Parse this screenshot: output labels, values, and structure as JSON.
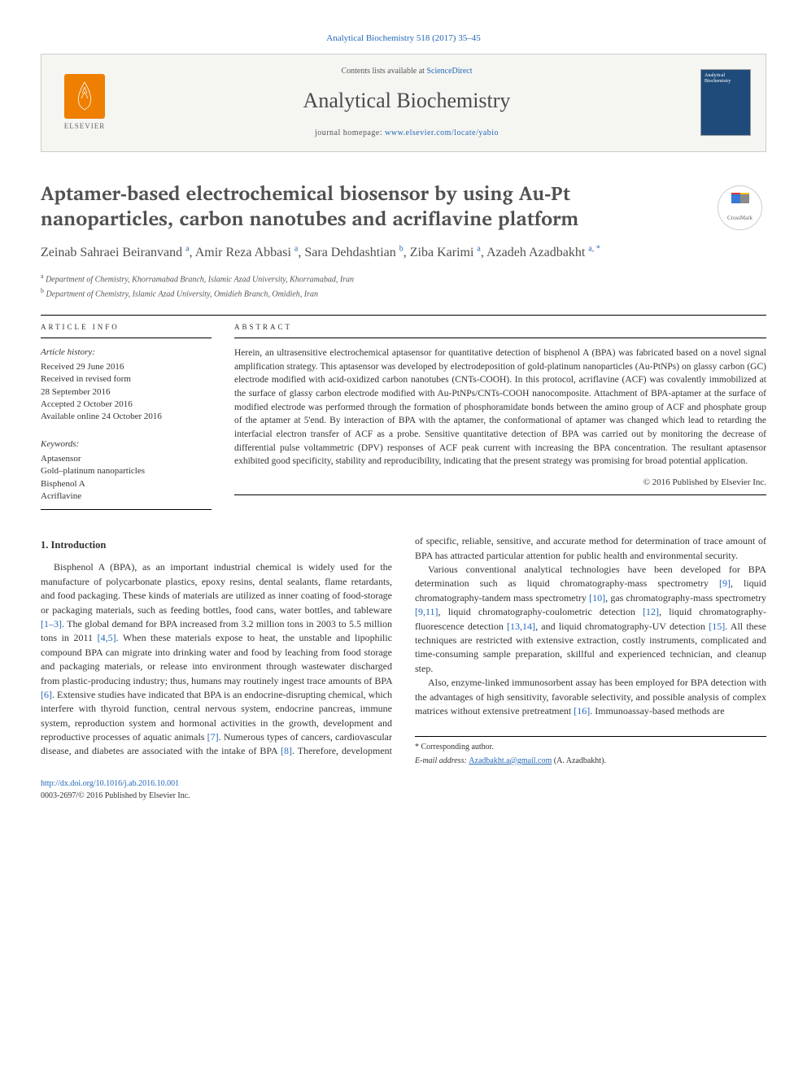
{
  "citation": "Analytical Biochemistry 518 (2017) 35–45",
  "header": {
    "contents_label": "Contents lists available at ",
    "contents_link": "ScienceDirect",
    "journal": "Analytical Biochemistry",
    "homepage_label": "journal homepage: ",
    "homepage_url": "www.elsevier.com/locate/yabio",
    "elsevier": "ELSEVIER",
    "cover_title": "Analytical Biochemistry"
  },
  "crossmark": "CrossMark",
  "title": "Aptamer-based electrochemical biosensor by using Au-Pt nanoparticles, carbon nanotubes and acriflavine platform",
  "authors_html": "Zeinab Sahraei Beiranvand <sup>a</sup>, Amir Reza Abbasi <sup>a</sup>, Sara Dehdashtian <sup>b</sup>, Ziba Karimi <sup>a</sup>, Azadeh Azadbakht <sup>a, *</sup>",
  "affiliations": {
    "a": "Department of Chemistry, Khorramabad Branch, Islamic Azad University, Khorramabad, Iran",
    "b": "Department of Chemistry, Islamic Azad University, Omidieh Branch, Omidieh, Iran"
  },
  "info_label": "ARTICLE INFO",
  "abstract_label": "ABSTRACT",
  "history": {
    "label": "Article history:",
    "items": [
      "Received 29 June 2016",
      "Received in revised form",
      "28 September 2016",
      "Accepted 2 October 2016",
      "Available online 24 October 2016"
    ]
  },
  "keywords": {
    "label": "Keywords:",
    "items": [
      "Aptasensor",
      "Gold–platinum nanoparticles",
      "Bisphenol A",
      "Acriflavine"
    ]
  },
  "abstract": "Herein, an ultrasensitive electrochemical aptasensor for quantitative detection of bisphenol A (BPA) was fabricated based on a novel signal amplification strategy. This aptasensor was developed by electrodeposition of gold-platinum nanoparticles (Au-PtNPs) on glassy carbon (GC) electrode modified with acid-oxidized carbon nanotubes (CNTs-COOH). In this protocol, acriflavine (ACF) was covalently immobilized at the surface of glassy carbon electrode modified with Au-PtNPs/CNTs-COOH nanocomposite. Attachment of BPA-aptamer at the surface of modified electrode was performed through the formation of phosphoramidate bonds between the amino group of ACF and phosphate group of the aptamer at 5'end. By interaction of BPA with the aptamer, the conformational of aptamer was changed which lead to retarding the interfacial electron transfer of ACF as a probe. Sensitive quantitative detection of BPA was carried out by monitoring the decrease of differential pulse voltammetric (DPV) responses of ACF peak current with increasing the BPA concentration. The resultant aptasensor exhibited good specificity, stability and reproducibility, indicating that the present strategy was promising for broad potential application.",
  "copyright": "© 2016 Published by Elsevier Inc.",
  "section1_heading": "1. Introduction",
  "para1": "Bisphenol A (BPA), as an important industrial chemical is widely used for the manufacture of polycarbonate plastics, epoxy resins, dental sealants, flame retardants, and food packaging. These kinds of materials are utilized as inner coating of food-storage or packaging materials, such as feeding bottles, food cans, water bottles, and tableware [1–3]. The global demand for BPA increased from 3.2 million tons in 2003 to 5.5 million tons in 2011 [4,5]. When these materials expose to heat, the unstable and lipophilic compound BPA can migrate into drinking water and food by leaching from food storage and packaging materials, or release into environment through wastewater discharged from plastic-producing industry; thus, humans may routinely ingest trace amounts of BPA [6]. Extensive studies have indicated that BPA is an endocrine-disrupting chemical, which interfere with thyroid function, central nervous system, endocrine pancreas, immune system, reproduction system and hormonal activities in the growth, development and reproductive processes of aquatic animals [7]. Numerous types of cancers, cardiovascular disease, and diabetes are associated with the intake of BPA [8]. Therefore, development of specific, reliable, sensitive, and accurate method for determination of trace amount of BPA has attracted particular attention for public health and environmental security.",
  "para2": "Various conventional analytical technologies have been developed for BPA determination such as liquid chromatography-mass spectrometry [9], liquid chromatography-tandem mass spectrometry [10], gas chromatography-mass spectrometry [9,11], liquid chromatography-coulometric detection [12], liquid chromatography-fluorescence detection [13,14], and liquid chromatography-UV detection [15]. All these techniques are restricted with extensive extraction, costly instruments, complicated and time-consuming sample preparation, skillful and experienced technician, and cleanup step.",
  "para3": "Also, enzyme-linked immunosorbent assay has been employed for BPA detection with the advantages of high sensitivity, favorable selectivity, and possible analysis of complex matrices without extensive pretreatment [16]. Immunoassay-based methods are",
  "footer": {
    "corr": "* Corresponding author.",
    "email_label": "E-mail address: ",
    "email": "Azadbakht.a@gmail.com",
    "email_author": " (A. Azadbakht).",
    "doi": "http://dx.doi.org/10.1016/j.ab.2016.10.001",
    "issn": "0003-2697/© 2016 Published by Elsevier Inc."
  },
  "colors": {
    "link": "#2568b8",
    "elsevier_orange": "#ee7f00",
    "cover_blue": "#1e4b7a",
    "text": "#333333",
    "title_gray": "#505050"
  }
}
